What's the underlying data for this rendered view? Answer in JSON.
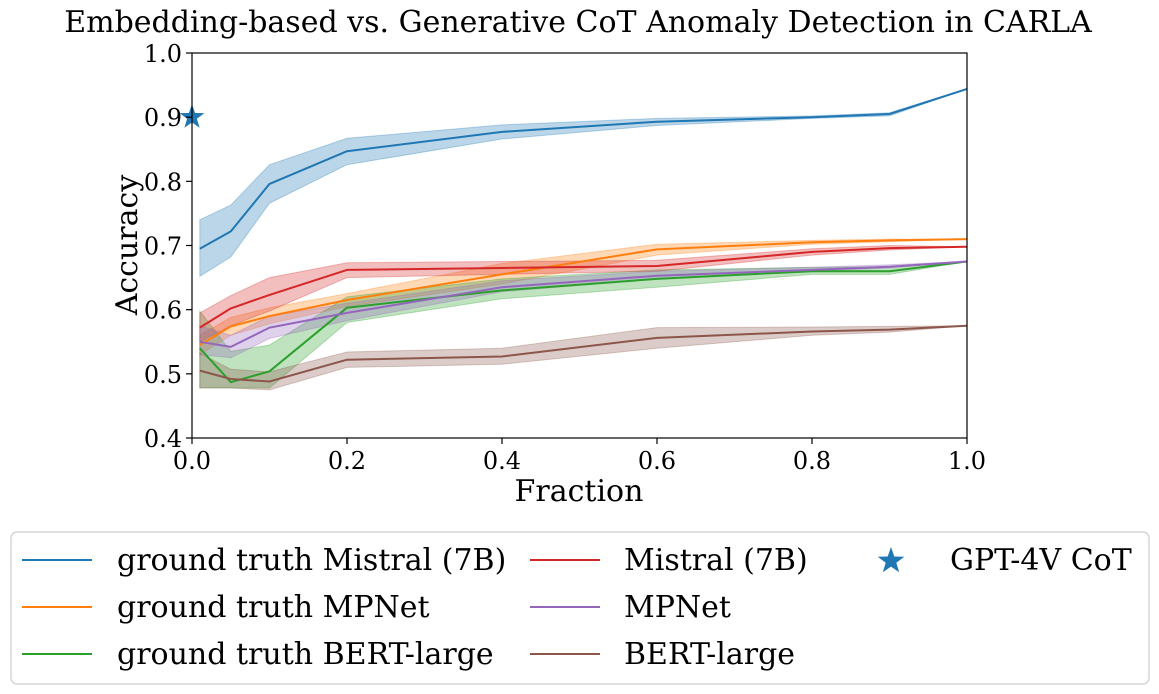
{
  "chart_data": {
    "type": "line",
    "title": "Embedding-based vs. Generative CoT Anomaly Detection in CARLA",
    "xlabel": "Fraction",
    "ylabel": "Accuracy",
    "xlim": [
      0,
      1
    ],
    "ylim": [
      0.4,
      1.0
    ],
    "xticks": [
      0.0,
      0.2,
      0.4,
      0.6,
      0.8,
      1.0
    ],
    "xtick_labels": [
      "0.0",
      "0.2",
      "0.4",
      "0.6",
      "0.8",
      "1.0"
    ],
    "yticks": [
      0.4,
      0.5,
      0.6,
      0.7,
      0.8,
      0.9,
      1.0
    ],
    "ytick_labels": [
      "0.4",
      "0.5",
      "0.6",
      "0.7",
      "0.8",
      "0.9",
      "1.0"
    ],
    "x": [
      0.01,
      0.05,
      0.1,
      0.2,
      0.4,
      0.6,
      0.8,
      0.9,
      1.0
    ],
    "series": [
      {
        "name": "ground truth Mistral (7B)",
        "color": "#1f77b4",
        "values": [
          0.695,
          0.722,
          0.796,
          0.847,
          0.877,
          0.893,
          0.9,
          0.905,
          0.944
        ],
        "lower": [
          0.652,
          0.682,
          0.766,
          0.826,
          0.866,
          0.887,
          0.898,
          0.902,
          0.944
        ],
        "upper": [
          0.74,
          0.763,
          0.826,
          0.867,
          0.888,
          0.898,
          0.902,
          0.907,
          0.944
        ]
      },
      {
        "name": "ground truth MPNet",
        "color": "#ff7f0e",
        "values": [
          0.545,
          0.574,
          0.59,
          0.615,
          0.655,
          0.694,
          0.705,
          0.708,
          0.71
        ],
        "lower": [
          0.53,
          0.56,
          0.578,
          0.605,
          0.64,
          0.685,
          0.702,
          0.706,
          0.71
        ],
        "upper": [
          0.56,
          0.588,
          0.603,
          0.625,
          0.672,
          0.702,
          0.708,
          0.71,
          0.71
        ]
      },
      {
        "name": "ground truth BERT-large",
        "color": "#2ca02c",
        "values": [
          0.54,
          0.487,
          0.504,
          0.603,
          0.63,
          0.648,
          0.66,
          0.66,
          0.675
        ],
        "lower": [
          0.478,
          0.478,
          0.478,
          0.58,
          0.617,
          0.635,
          0.655,
          0.655,
          0.675
        ],
        "upper": [
          0.598,
          0.535,
          0.545,
          0.62,
          0.648,
          0.662,
          0.666,
          0.667,
          0.675
        ]
      },
      {
        "name": "Mistral (7B)",
        "color": "#d62728",
        "values": [
          0.572,
          0.602,
          0.623,
          0.662,
          0.665,
          0.668,
          0.69,
          0.696,
          0.698
        ],
        "lower": [
          0.55,
          0.575,
          0.598,
          0.65,
          0.655,
          0.66,
          0.685,
          0.693,
          0.698
        ],
        "upper": [
          0.595,
          0.622,
          0.65,
          0.673,
          0.675,
          0.677,
          0.695,
          0.7,
          0.698
        ]
      },
      {
        "name": "MPNet",
        "color": "#9467bd",
        "values": [
          0.55,
          0.542,
          0.572,
          0.595,
          0.635,
          0.653,
          0.662,
          0.667,
          0.675
        ],
        "lower": [
          0.53,
          0.525,
          0.555,
          0.583,
          0.628,
          0.648,
          0.66,
          0.665,
          0.675
        ],
        "upper": [
          0.575,
          0.56,
          0.59,
          0.61,
          0.645,
          0.66,
          0.666,
          0.67,
          0.675
        ]
      },
      {
        "name": "BERT-large",
        "color": "#8c564b",
        "values": [
          0.505,
          0.492,
          0.488,
          0.522,
          0.527,
          0.556,
          0.566,
          0.569,
          0.575
        ],
        "lower": [
          0.478,
          0.478,
          0.475,
          0.51,
          0.515,
          0.54,
          0.56,
          0.565,
          0.575
        ],
        "upper": [
          0.532,
          0.507,
          0.503,
          0.534,
          0.54,
          0.572,
          0.573,
          0.574,
          0.575
        ]
      }
    ],
    "markers": [
      {
        "name": "GPT-4V CoT",
        "color": "#1f77b4",
        "shape": "star",
        "x": 0.0,
        "y": 0.9
      }
    ],
    "legend": {
      "placement": "bottom",
      "columns": 3,
      "entries": [
        "ground truth Mistral (7B)",
        "ground truth MPNet",
        "ground truth BERT-large",
        "Mistral (7B)",
        "MPNet",
        "BERT-large",
        "GPT-4V CoT"
      ]
    }
  }
}
